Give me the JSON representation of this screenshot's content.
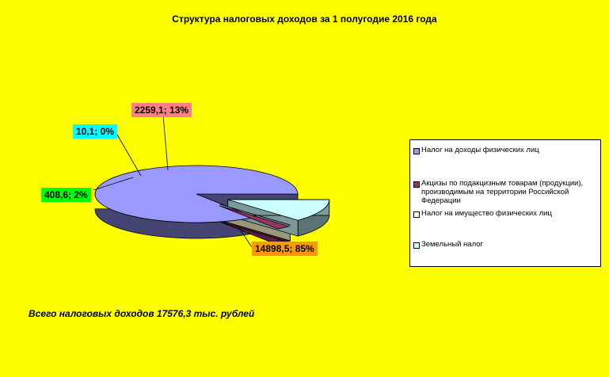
{
  "colors": {
    "background": "#FFFF00",
    "slices": [
      "#9999FF",
      "#993366",
      "#FFFFCC",
      "#CCFFFF"
    ],
    "label_boxes": [
      "#FF9900",
      "#00FF00",
      "#00FFFF",
      "#FF8080"
    ]
  },
  "chart_data": {
    "type": "pie",
    "title": "Структура налоговых доходов за 1 полугодие 2016 года",
    "legend_position": "right",
    "slices": [
      {
        "name": "Налог на доходы физических лиц",
        "value": 14898.5,
        "percent": 85,
        "label": "14898,5; 85%"
      },
      {
        "name": "Акцизы по подакцизным товарам (продукции), производимым на территории Российской Федерации",
        "value": 408.6,
        "percent": 2,
        "label": "408,6; 2%"
      },
      {
        "name": "Налог на имущество физических лиц",
        "value": 10.1,
        "percent": 0,
        "label": "10,1; 0%"
      },
      {
        "name": "Земельный налог",
        "value": 2259.1,
        "percent": 13,
        "label": "2259,1; 13%"
      }
    ]
  },
  "footer": {
    "total_text": "Всего налоговых доходов 17576,3 тыс. рублей"
  }
}
